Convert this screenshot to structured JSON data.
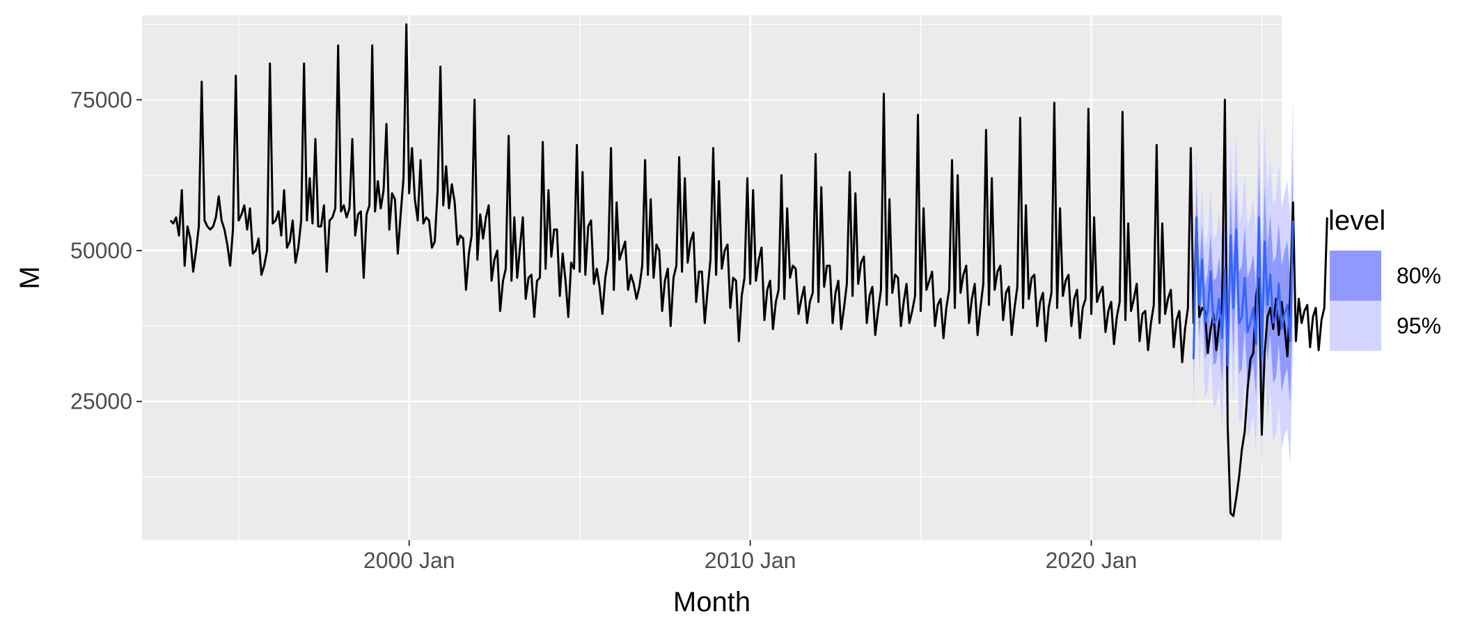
{
  "chart_data": {
    "type": "line",
    "title": "",
    "xlabel": "Month",
    "ylabel": "M",
    "xlim": [
      "1992-03",
      "2025-08"
    ],
    "ylim": [
      2000,
      89000
    ],
    "x_ticks": [
      {
        "value": "2000-01",
        "label": "2000 Jan"
      },
      {
        "value": "2010-01",
        "label": "2010 Jan"
      },
      {
        "value": "2020-01",
        "label": "2020 Jan"
      }
    ],
    "y_ticks": [
      25000,
      50000,
      75000
    ],
    "grid": true,
    "background": "#EBEBEB",
    "grid_color": "#FFFFFF",
    "history": {
      "name": "M",
      "color": "#000000",
      "start": "1993-01",
      "values": [
        55000,
        54500,
        55500,
        52500,
        60000,
        47500,
        54000,
        52000,
        46500,
        50000,
        54000,
        78000,
        55000,
        54000,
        53500,
        54000,
        55500,
        59000,
        55000,
        53500,
        51000,
        47500,
        53500,
        79000,
        55000,
        56000,
        57500,
        53500,
        57000,
        49500,
        50000,
        52000,
        46000,
        47500,
        50000,
        81000,
        54500,
        55000,
        56500,
        52500,
        60000,
        50500,
        51500,
        55000,
        48000,
        50500,
        55000,
        81000,
        55000,
        62000,
        54500,
        68500,
        54000,
        54000,
        57500,
        46500,
        55000,
        55500,
        57000,
        84000,
        56500,
        57500,
        55500,
        57000,
        68500,
        52500,
        56000,
        56500,
        45500,
        56000,
        57500,
        84000,
        56500,
        61500,
        57000,
        60000,
        71000,
        53500,
        59500,
        58500,
        49500,
        56000,
        62000,
        87500,
        59500,
        67000,
        58500,
        55000,
        65000,
        54500,
        55500,
        55000,
        50500,
        51500,
        60000,
        80500,
        57500,
        64000,
        57000,
        61000,
        58000,
        51000,
        52500,
        52000,
        43500,
        49500,
        52500,
        75000,
        48500,
        56000,
        52000,
        55500,
        57500,
        45000,
        48500,
        50000,
        40000,
        45000,
        47000,
        69000,
        45000,
        55500,
        45500,
        50500,
        55500,
        42000,
        45500,
        46000,
        39000,
        45000,
        45500,
        68000,
        47000,
        60000,
        49000,
        53500,
        53500,
        42500,
        49500,
        45000,
        39000,
        48000,
        47000,
        67500,
        46500,
        63000,
        46000,
        54000,
        55000,
        44500,
        47000,
        44000,
        39500,
        45500,
        48500,
        67000,
        43500,
        58000,
        48500,
        50000,
        51500,
        43500,
        46000,
        44500,
        42000,
        44000,
        47500,
        65000,
        46000,
        58500,
        45500,
        51000,
        50000,
        40000,
        45000,
        47000,
        37500,
        45500,
        47500,
        65500,
        46500,
        62000,
        48000,
        51500,
        53000,
        41500,
        46500,
        46500,
        38000,
        43500,
        48500,
        67000,
        46000,
        61500,
        47000,
        50000,
        51000,
        40500,
        45500,
        45000,
        35000,
        42500,
        45500,
        62000,
        44500,
        60000,
        45000,
        48500,
        50500,
        38500,
        43500,
        45000,
        37000,
        41500,
        43500,
        62500,
        42000,
        57000,
        45500,
        47500,
        47000,
        39500,
        42000,
        44000,
        38000,
        41500,
        43000,
        66000,
        41500,
        60500,
        44000,
        47500,
        47500,
        38000,
        43000,
        45000,
        37000,
        40500,
        44500,
        63000,
        42500,
        59500,
        44500,
        48000,
        49000,
        38000,
        42500,
        44000,
        36000,
        40000,
        43500,
        76000,
        41000,
        58500,
        43000,
        46000,
        45500,
        37500,
        41500,
        44500,
        38000,
        40000,
        42500,
        72500,
        40000,
        57000,
        43500,
        45000,
        46500,
        37500,
        41000,
        42000,
        35500,
        40500,
        43500,
        65000,
        40500,
        62500,
        43000,
        46000,
        47500,
        38000,
        42000,
        44500,
        36000,
        40500,
        44500,
        70000,
        41000,
        62000,
        43500,
        46500,
        47500,
        38500,
        43000,
        44000,
        36000,
        40500,
        44000,
        72000,
        40500,
        57500,
        42000,
        45500,
        46000,
        37500,
        41500,
        43000,
        35000,
        40500,
        43000,
        74500,
        40500,
        57000,
        42500,
        45000,
        46000,
        37500,
        42000,
        43500,
        35500,
        40500,
        42000,
        73500,
        39500,
        55500,
        41500,
        43000,
        44000,
        36500,
        40000,
        41500,
        34500,
        39000,
        41500,
        73000,
        38500,
        54500,
        40000,
        42000,
        44500,
        35000,
        39500,
        40000,
        33500,
        38000,
        41000,
        67500,
        38000,
        54500,
        39500,
        42000,
        43500,
        34000,
        38500,
        40000,
        31500,
        37000,
        40500,
        67000,
        38000,
        55500,
        39000,
        40500,
        40000,
        33000,
        37000,
        39500,
        33500,
        38000,
        40500,
        75000,
        21000,
        6500,
        6000,
        9000,
        12500,
        17000,
        20000,
        27000,
        32000,
        33000,
        42500,
        45500,
        19500,
        33000,
        39000,
        40500,
        37000,
        42000,
        36000,
        41500,
        37500,
        32500,
        42500,
        58000,
        35000,
        42000,
        38000,
        40000,
        41000,
        34000,
        39000,
        40500,
        33500,
        38500,
        40500,
        55500
      ]
    },
    "forecast": {
      "name": "forecast",
      "color": "#3366FF",
      "start": "2023-01",
      "values": [
        32000,
        55500,
        41000,
        48500,
        38000,
        40000,
        46500,
        38000,
        38500,
        42000,
        35500,
        47000,
        31000,
        52500,
        40500,
        53500,
        38000,
        39000,
        45500,
        36500,
        38000,
        40500,
        34500,
        55500,
        32500,
        51500,
        41000,
        46000,
        38000,
        39000,
        44500,
        37000,
        39500,
        41000,
        35000,
        55000
      ],
      "legend_title": "level",
      "bands": [
        {
          "level": "80%",
          "color": "#8F99FF",
          "half_width": [
            5000,
            5500,
            5500,
            6000,
            6000,
            6500,
            6500,
            7000,
            7000,
            7000,
            7500,
            7500,
            7500,
            8000,
            8000,
            8000,
            8500,
            8500,
            8500,
            9000,
            9000,
            9000,
            9000,
            9500,
            9500,
            9500,
            9500,
            10000,
            10000,
            10000,
            10000,
            10500,
            10500,
            10500,
            10500,
            11000
          ]
        },
        {
          "level": "95%",
          "color": "#D3D5FF",
          "half_width": [
            10000,
            11000,
            11500,
            12000,
            12500,
            13000,
            13500,
            14000,
            14000,
            14500,
            15000,
            15000,
            15500,
            16000,
            16000,
            16500,
            16500,
            17000,
            17000,
            17500,
            17500,
            18000,
            18000,
            18500,
            18500,
            19000,
            19000,
            19000,
            19500,
            19500,
            20000,
            20000,
            20000,
            20500,
            20500,
            21000
          ]
        }
      ]
    }
  }
}
